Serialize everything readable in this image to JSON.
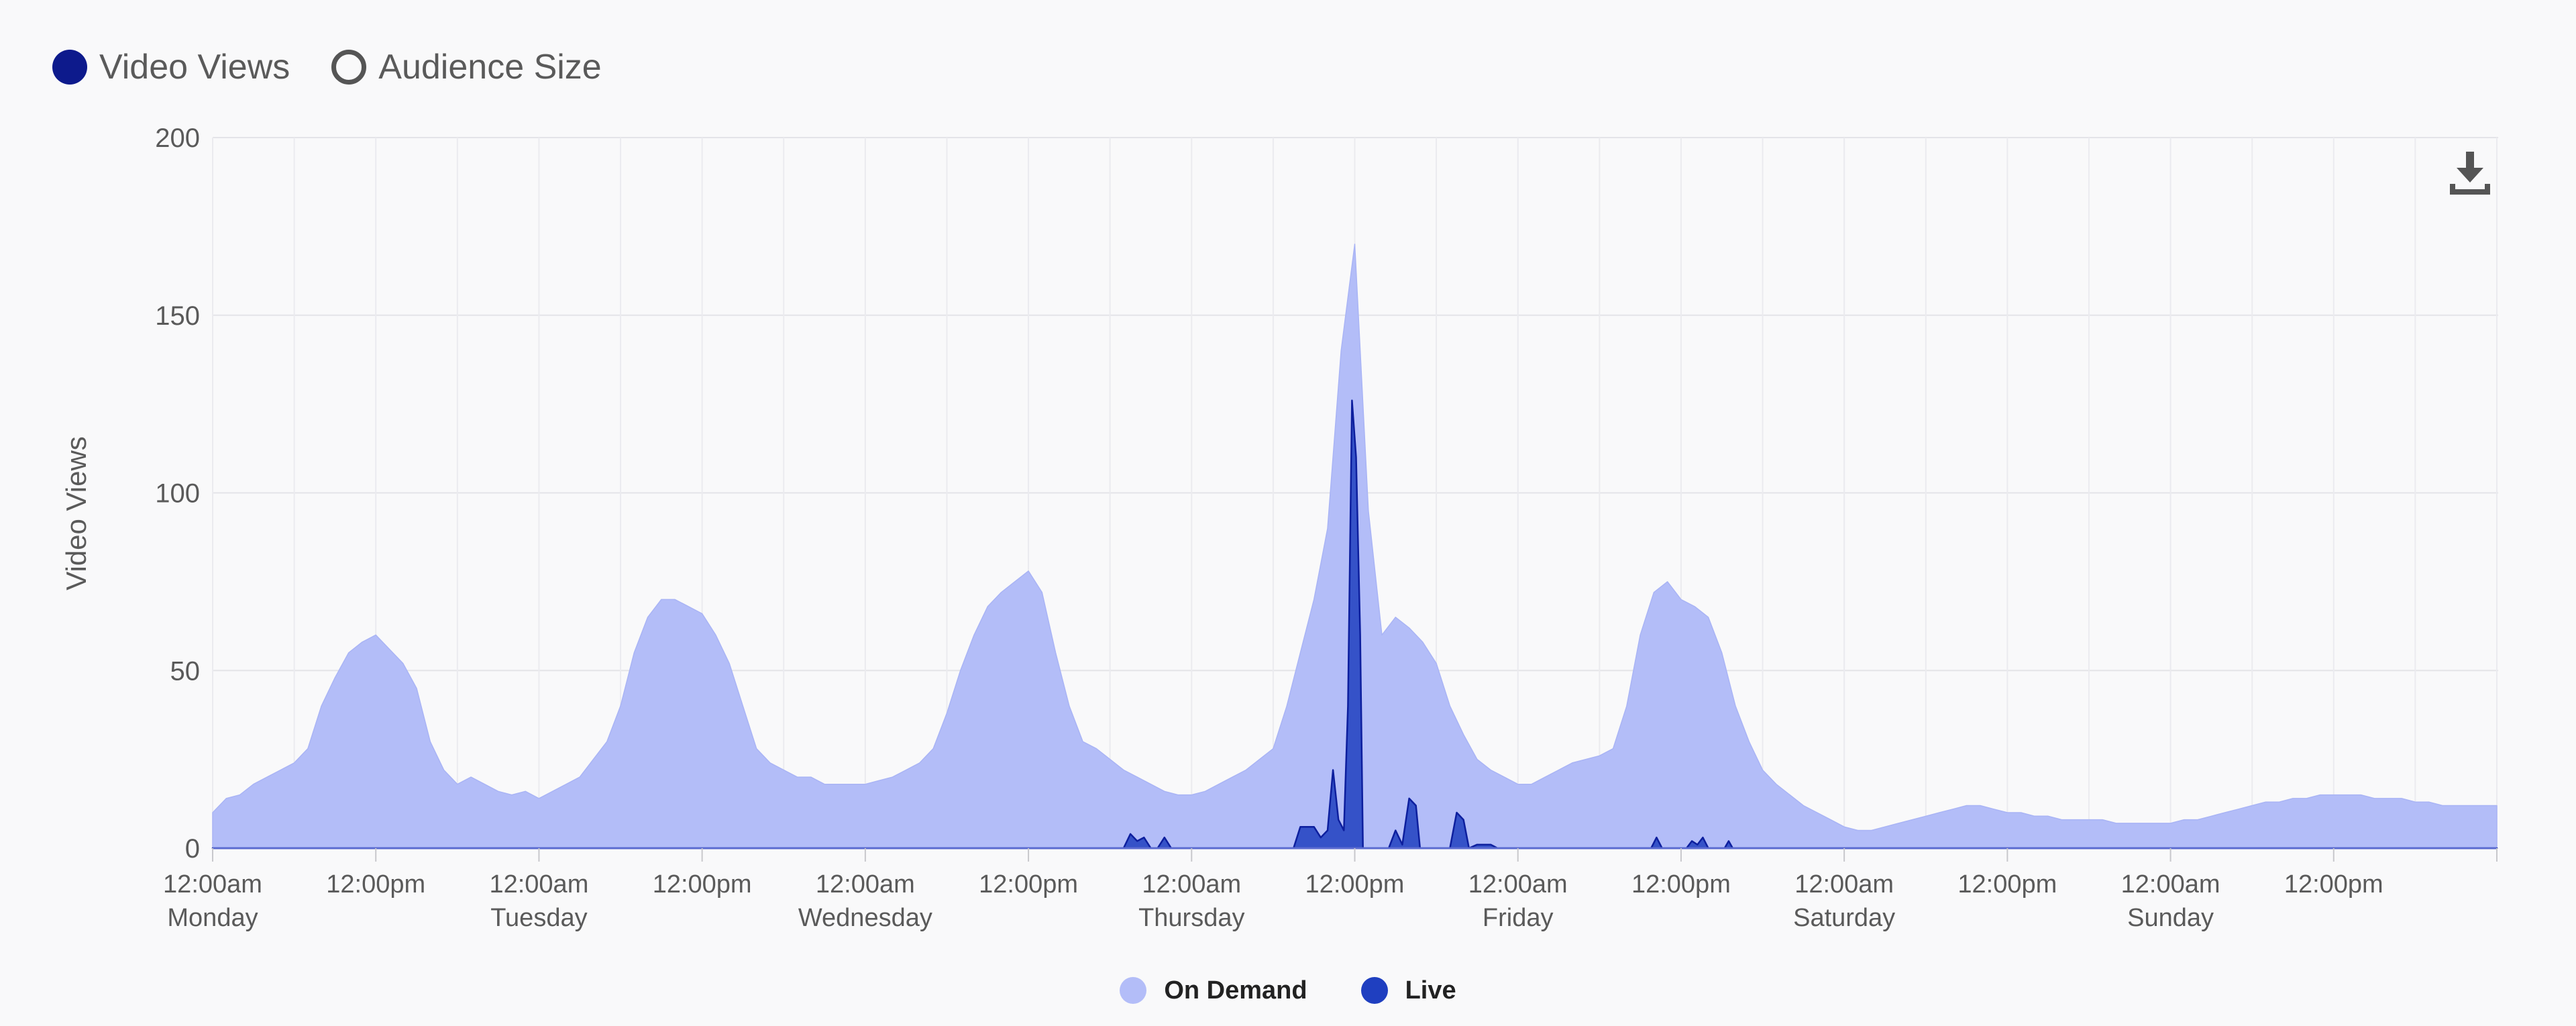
{
  "metric_toggles": [
    {
      "label": "Video Views",
      "selected": true,
      "color": "#0d1a8c"
    },
    {
      "label": "Audience Size",
      "selected": false,
      "color": "#555555"
    }
  ],
  "download_icon": "download-icon",
  "chart_data": {
    "type": "area",
    "ylabel": "Video Views",
    "ylim": [
      0,
      200
    ],
    "yticks": [
      0,
      50,
      100,
      150,
      200
    ],
    "grid": true,
    "legend_placement": "bottom-center",
    "x_unit": "hours from Monday 12:00am",
    "x_range": [
      0,
      168
    ],
    "x_tick_labels": [
      {
        "hour": 0,
        "time": "12:00am",
        "day": "Monday"
      },
      {
        "hour": 12,
        "time": "12:00pm",
        "day": ""
      },
      {
        "hour": 24,
        "time": "12:00am",
        "day": "Tuesday"
      },
      {
        "hour": 36,
        "time": "12:00pm",
        "day": ""
      },
      {
        "hour": 48,
        "time": "12:00am",
        "day": "Wednesday"
      },
      {
        "hour": 60,
        "time": "12:00pm",
        "day": ""
      },
      {
        "hour": 72,
        "time": "12:00am",
        "day": "Thursday"
      },
      {
        "hour": 84,
        "time": "12:00pm",
        "day": ""
      },
      {
        "hour": 96,
        "time": "12:00am",
        "day": "Friday"
      },
      {
        "hour": 108,
        "time": "12:00pm",
        "day": ""
      },
      {
        "hour": 120,
        "time": "12:00am",
        "day": "Saturday"
      },
      {
        "hour": 132,
        "time": "12:00pm",
        "day": ""
      },
      {
        "hour": 144,
        "time": "12:00am",
        "day": "Sunday"
      },
      {
        "hour": 156,
        "time": "12:00pm",
        "day": ""
      }
    ],
    "series": [
      {
        "name": "On Demand",
        "color": "#b3bdf8",
        "points": [
          [
            0,
            10
          ],
          [
            1,
            14
          ],
          [
            2,
            15
          ],
          [
            3,
            18
          ],
          [
            4,
            20
          ],
          [
            5,
            22
          ],
          [
            6,
            24
          ],
          [
            7,
            28
          ],
          [
            8,
            40
          ],
          [
            9,
            48
          ],
          [
            10,
            55
          ],
          [
            11,
            58
          ],
          [
            12,
            60
          ],
          [
            13,
            56
          ],
          [
            14,
            52
          ],
          [
            15,
            45
          ],
          [
            16,
            30
          ],
          [
            17,
            22
          ],
          [
            18,
            18
          ],
          [
            19,
            20
          ],
          [
            20,
            18
          ],
          [
            21,
            16
          ],
          [
            22,
            15
          ],
          [
            23,
            16
          ],
          [
            24,
            14
          ],
          [
            25,
            16
          ],
          [
            26,
            18
          ],
          [
            27,
            20
          ],
          [
            28,
            25
          ],
          [
            29,
            30
          ],
          [
            30,
            40
          ],
          [
            31,
            55
          ],
          [
            32,
            65
          ],
          [
            33,
            70
          ],
          [
            34,
            70
          ],
          [
            35,
            68
          ],
          [
            36,
            66
          ],
          [
            37,
            60
          ],
          [
            38,
            52
          ],
          [
            39,
            40
          ],
          [
            40,
            28
          ],
          [
            41,
            24
          ],
          [
            42,
            22
          ],
          [
            43,
            20
          ],
          [
            44,
            20
          ],
          [
            45,
            18
          ],
          [
            46,
            18
          ],
          [
            47,
            18
          ],
          [
            48,
            18
          ],
          [
            49,
            19
          ],
          [
            50,
            20
          ],
          [
            51,
            22
          ],
          [
            52,
            24
          ],
          [
            53,
            28
          ],
          [
            54,
            38
          ],
          [
            55,
            50
          ],
          [
            56,
            60
          ],
          [
            57,
            68
          ],
          [
            58,
            72
          ],
          [
            59,
            75
          ],
          [
            60,
            78
          ],
          [
            61,
            72
          ],
          [
            62,
            55
          ],
          [
            63,
            40
          ],
          [
            64,
            30
          ],
          [
            65,
            28
          ],
          [
            66,
            25
          ],
          [
            67,
            22
          ],
          [
            68,
            20
          ],
          [
            69,
            18
          ],
          [
            70,
            16
          ],
          [
            71,
            15
          ],
          [
            72,
            15
          ],
          [
            73,
            16
          ],
          [
            74,
            18
          ],
          [
            75,
            20
          ],
          [
            76,
            22
          ],
          [
            77,
            25
          ],
          [
            78,
            28
          ],
          [
            79,
            40
          ],
          [
            80,
            55
          ],
          [
            81,
            70
          ],
          [
            82,
            90
          ],
          [
            83,
            140
          ],
          [
            84,
            170
          ],
          [
            85,
            95
          ],
          [
            86,
            60
          ],
          [
            87,
            65
          ],
          [
            88,
            62
          ],
          [
            89,
            58
          ],
          [
            90,
            52
          ],
          [
            91,
            40
          ],
          [
            92,
            32
          ],
          [
            93,
            25
          ],
          [
            94,
            22
          ],
          [
            95,
            20
          ],
          [
            96,
            18
          ],
          [
            97,
            18
          ],
          [
            98,
            20
          ],
          [
            99,
            22
          ],
          [
            100,
            24
          ],
          [
            101,
            25
          ],
          [
            102,
            26
          ],
          [
            103,
            28
          ],
          [
            104,
            40
          ],
          [
            105,
            60
          ],
          [
            106,
            72
          ],
          [
            107,
            75
          ],
          [
            108,
            70
          ],
          [
            109,
            68
          ],
          [
            110,
            65
          ],
          [
            111,
            55
          ],
          [
            112,
            40
          ],
          [
            113,
            30
          ],
          [
            114,
            22
          ],
          [
            115,
            18
          ],
          [
            116,
            15
          ],
          [
            117,
            12
          ],
          [
            118,
            10
          ],
          [
            119,
            8
          ],
          [
            120,
            6
          ],
          [
            121,
            5
          ],
          [
            122,
            5
          ],
          [
            123,
            6
          ],
          [
            124,
            7
          ],
          [
            125,
            8
          ],
          [
            126,
            9
          ],
          [
            127,
            10
          ],
          [
            128,
            11
          ],
          [
            129,
            12
          ],
          [
            130,
            12
          ],
          [
            131,
            11
          ],
          [
            132,
            10
          ],
          [
            133,
            10
          ],
          [
            134,
            9
          ],
          [
            135,
            9
          ],
          [
            136,
            8
          ],
          [
            137,
            8
          ],
          [
            138,
            8
          ],
          [
            139,
            8
          ],
          [
            140,
            7
          ],
          [
            141,
            7
          ],
          [
            142,
            7
          ],
          [
            143,
            7
          ],
          [
            144,
            7
          ],
          [
            145,
            8
          ],
          [
            146,
            8
          ],
          [
            147,
            9
          ],
          [
            148,
            10
          ],
          [
            149,
            11
          ],
          [
            150,
            12
          ],
          [
            151,
            13
          ],
          [
            152,
            13
          ],
          [
            153,
            14
          ],
          [
            154,
            14
          ],
          [
            155,
            15
          ],
          [
            156,
            15
          ],
          [
            157,
            15
          ],
          [
            158,
            15
          ],
          [
            159,
            14
          ],
          [
            160,
            14
          ],
          [
            161,
            14
          ],
          [
            162,
            13
          ],
          [
            163,
            13
          ],
          [
            164,
            12
          ],
          [
            165,
            12
          ],
          [
            166,
            12
          ],
          [
            167,
            12
          ],
          [
            168,
            12
          ]
        ]
      },
      {
        "name": "Live",
        "color": "#1f3fc0",
        "points": [
          [
            0,
            0
          ],
          [
            67,
            0
          ],
          [
            67.5,
            4
          ],
          [
            68,
            2
          ],
          [
            68.5,
            3
          ],
          [
            69,
            0
          ],
          [
            69.5,
            0
          ],
          [
            70,
            3
          ],
          [
            70.5,
            0
          ],
          [
            79.5,
            0
          ],
          [
            80,
            6
          ],
          [
            81,
            6
          ],
          [
            81.5,
            3
          ],
          [
            82,
            5
          ],
          [
            82.4,
            22
          ],
          [
            82.8,
            8
          ],
          [
            83.2,
            5
          ],
          [
            83.5,
            40
          ],
          [
            83.8,
            126
          ],
          [
            84.1,
            110
          ],
          [
            84.4,
            60
          ],
          [
            84.6,
            0
          ],
          [
            86.5,
            0
          ],
          [
            87,
            5
          ],
          [
            87.5,
            1
          ],
          [
            88,
            14
          ],
          [
            88.5,
            12
          ],
          [
            88.8,
            0
          ],
          [
            91,
            0
          ],
          [
            91.5,
            10
          ],
          [
            92,
            8
          ],
          [
            92.4,
            0
          ],
          [
            93,
            1
          ],
          [
            94,
            1
          ],
          [
            94.5,
            0
          ],
          [
            105.8,
            0
          ],
          [
            106.2,
            3
          ],
          [
            106.6,
            0
          ],
          [
            108.4,
            0
          ],
          [
            108.8,
            2
          ],
          [
            109.2,
            1
          ],
          [
            109.6,
            3
          ],
          [
            110,
            0
          ],
          [
            111.2,
            0
          ],
          [
            111.5,
            2
          ],
          [
            111.8,
            0
          ],
          [
            168,
            0
          ]
        ]
      }
    ]
  }
}
